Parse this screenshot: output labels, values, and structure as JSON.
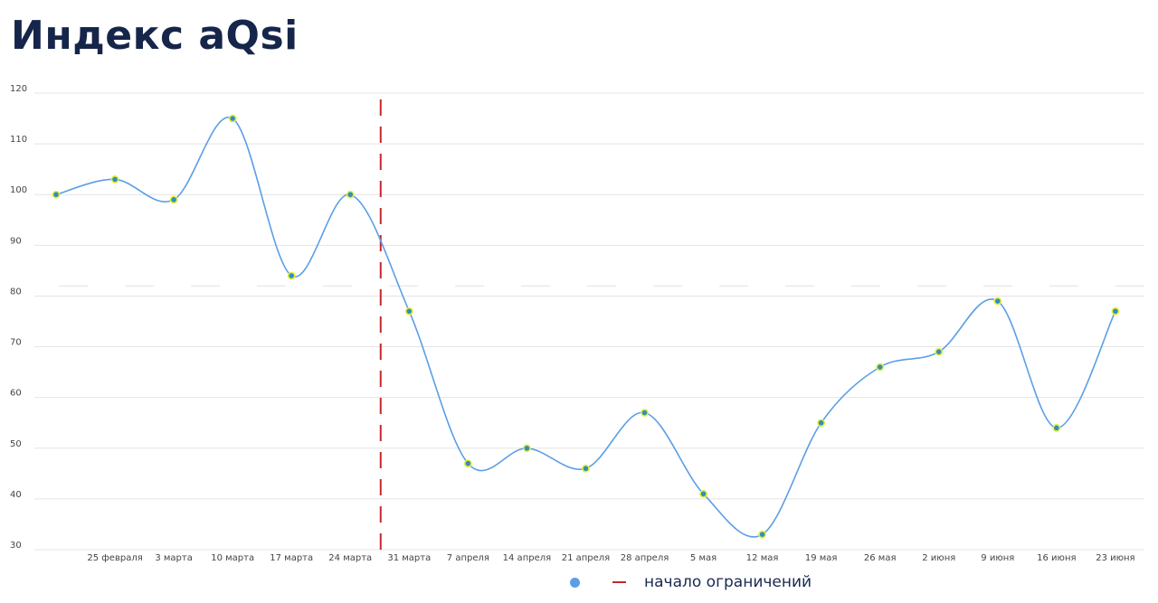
{
  "title": "Индекс aQsi",
  "colors": {
    "title": "#16254a",
    "line": "#5b9ee6",
    "marker_fill": "#2f8fbf",
    "marker_stroke": "#e6ee3a",
    "restriction_line": "#c62828",
    "grid": "#e4e4e4",
    "reference_line": "#e6e6e6",
    "tick_text": "#444444"
  },
  "legend": {
    "series_icon": "circle-dot",
    "restriction_icon": "red-dash",
    "restriction_label": "начало ограничений"
  },
  "chart_data": {
    "type": "line",
    "title": "Индекс aQsi",
    "xlabel": "",
    "ylabel": "",
    "ylim": [
      30,
      120
    ],
    "yticks": [
      30,
      40,
      50,
      60,
      70,
      80,
      90,
      100,
      110,
      120
    ],
    "grid": true,
    "x": [
      "",
      "25 февраля",
      "3 марта",
      "10 марта",
      "17 марта",
      "24 марта",
      "31 марта",
      "7 апреля",
      "14 апреля",
      "21 апреля",
      "28 апреля",
      "5 мая",
      "12 мая",
      "19 мая",
      "26 мая",
      "2 июня",
      "9 июня",
      "16 июня",
      "23 июня"
    ],
    "series": [
      {
        "values": [
          100,
          103,
          99,
          115,
          84,
          100,
          77,
          47,
          50,
          46,
          57,
          41,
          33,
          55,
          66,
          69,
          79,
          54,
          77
        ]
      }
    ],
    "reference_line": {
      "value": 82,
      "style": "dashed"
    },
    "vertical_marker": {
      "between": [
        "24 марта",
        "31 марта"
      ],
      "label": "начало ограничений",
      "style": "dashed"
    },
    "legend_position": "bottom-center"
  }
}
